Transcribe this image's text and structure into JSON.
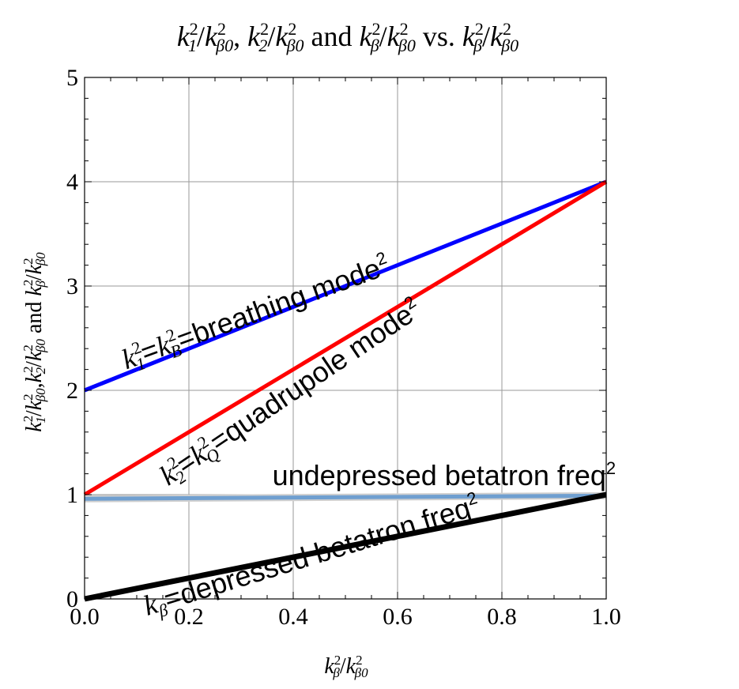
{
  "chart_data": {
    "type": "line",
    "title": {
      "parts": [
        {
          "base": "k",
          "sub": "1",
          "sup": "2"
        },
        {
          "text": "/"
        },
        {
          "base": "k",
          "sub": "β0",
          "sup": "2"
        },
        {
          "text": ", "
        },
        {
          "base": "k",
          "sub": "2",
          "sup": "2"
        },
        {
          "text": "/"
        },
        {
          "base": "k",
          "sub": "β0",
          "sup": "2"
        },
        {
          "text": " and "
        },
        {
          "base": "k",
          "sub": "β",
          "sup": "2"
        },
        {
          "text": "/"
        },
        {
          "base": "k",
          "sub": "β0",
          "sup": "2"
        },
        {
          "text": " vs. "
        },
        {
          "base": "k",
          "sub": "β",
          "sup": "2"
        },
        {
          "text": "/"
        },
        {
          "base": "k",
          "sub": "β0",
          "sup": "2"
        }
      ]
    },
    "xlabel": {
      "parts": [
        {
          "base": "k",
          "sub": "β",
          "sup": "2"
        },
        {
          "text": "/"
        },
        {
          "base": "k",
          "sub": "β0",
          "sup": "2"
        }
      ]
    },
    "ylabel": {
      "parts": [
        {
          "base": "k",
          "sub": "1",
          "sup": "2"
        },
        {
          "text": "/"
        },
        {
          "base": "k",
          "sub": "β0",
          "sup": "2"
        },
        {
          "text": ","
        },
        {
          "base": "k",
          "sub": "2",
          "sup": "2"
        },
        {
          "text": "/"
        },
        {
          "base": "k",
          "sub": "β0",
          "sup": "2"
        },
        {
          "text": " and "
        },
        {
          "base": "k",
          "sub": "β",
          "sup": "2"
        },
        {
          "text": "/"
        },
        {
          "base": "k",
          "sub": "β0",
          "sup": "2"
        }
      ]
    },
    "xlim": [
      0,
      1
    ],
    "ylim": [
      0,
      5
    ],
    "xticks": [
      0.0,
      0.2,
      0.4,
      0.6,
      0.8,
      1.0
    ],
    "xtick_labels": [
      "0.0",
      "0.2",
      "0.4",
      "0.6",
      "0.8",
      "1.0"
    ],
    "yticks": [
      0,
      1,
      2,
      3,
      4,
      5
    ],
    "ytick_labels": [
      "0",
      "1",
      "2",
      "3",
      "4",
      "5"
    ],
    "grid": true,
    "series": [
      {
        "key": "breathing",
        "color": "#0000ff",
        "points": [
          [
            0,
            2
          ],
          [
            1,
            4
          ]
        ]
      },
      {
        "key": "quadrupole",
        "color": "#ff0000",
        "points": [
          [
            0,
            1
          ],
          [
            1,
            4
          ]
        ]
      },
      {
        "key": "undepressed",
        "color": "#6f9fd0",
        "points": [
          [
            0,
            0.96
          ],
          [
            1,
            0.99
          ]
        ]
      },
      {
        "key": "depressed",
        "color": "#000000",
        "points": [
          [
            0,
            0
          ],
          [
            1,
            1
          ]
        ]
      }
    ],
    "annotations": [
      {
        "key": "breathing",
        "anchor": [
          0.08,
          2.2
        ],
        "rotate": -20,
        "parts": [
          {
            "base": "k",
            "sub": "1",
            "sup": "2",
            "serif": true
          },
          {
            "text": "="
          },
          {
            "base": "k",
            "sub": "B",
            "sup": "2",
            "serif": true
          },
          {
            "text": "=breathing mode"
          },
          {
            "sup_only": "2"
          }
        ]
      },
      {
        "key": "quadrupole",
        "anchor": [
          0.16,
          1.08
        ],
        "rotate": -34,
        "parts": [
          {
            "base": "k",
            "sub": "2",
            "sup": "2",
            "serif": true
          },
          {
            "text": "="
          },
          {
            "base": "k",
            "sub": "Q",
            "sup": "2",
            "serif": true
          },
          {
            "text": "=quadrupole mode"
          },
          {
            "sup_only": "2"
          }
        ]
      },
      {
        "key": "undepressed",
        "anchor": [
          0.36,
          1.09
        ],
        "rotate": 0,
        "parts": [
          {
            "text": "undepressed betatron freq"
          },
          {
            "sup_only": "2"
          }
        ]
      },
      {
        "key": "depressed",
        "anchor": [
          0.12,
          -0.16
        ],
        "rotate": -17,
        "parts": [
          {
            "base": "k",
            "sub": "β",
            "serif": true
          },
          {
            "text": "=depressed betatron freq"
          },
          {
            "sup_only": "2"
          }
        ]
      }
    ]
  }
}
